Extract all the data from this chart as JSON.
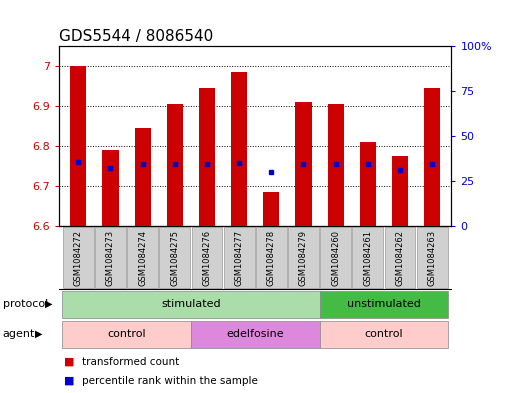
{
  "title": "GDS5544 / 8086540",
  "samples": [
    "GSM1084272",
    "GSM1084273",
    "GSM1084274",
    "GSM1084275",
    "GSM1084276",
    "GSM1084277",
    "GSM1084278",
    "GSM1084279",
    "GSM1084260",
    "GSM1084261",
    "GSM1084262",
    "GSM1084263"
  ],
  "bar_tops": [
    7.0,
    6.79,
    6.845,
    6.905,
    6.945,
    6.985,
    6.685,
    6.91,
    6.905,
    6.81,
    6.775,
    6.945
  ],
  "bar_base": 6.6,
  "percentile_values": [
    6.76,
    6.745,
    6.755,
    6.755,
    6.755,
    6.757,
    6.735,
    6.755,
    6.755,
    6.755,
    6.74,
    6.755
  ],
  "ylim_left": [
    6.6,
    7.05
  ],
  "ylim_right": [
    0,
    100
  ],
  "yticks_left": [
    6.6,
    6.7,
    6.8,
    6.9,
    7.0
  ],
  "ytick_labels_left": [
    "6.6",
    "6.7",
    "6.8",
    "6.9",
    "7"
  ],
  "yticks_right": [
    0,
    25,
    50,
    75,
    100
  ],
  "ytick_labels_right": [
    "0",
    "25",
    "50",
    "75",
    "100%"
  ],
  "bar_color": "#cc0000",
  "percentile_color": "#0000cc",
  "bg_color": "#ffffff",
  "plot_bg_color": "#ffffff",
  "proto_data": [
    {
      "start": 0,
      "end": 8,
      "label": "stimulated",
      "color": "#aaddaa"
    },
    {
      "start": 8,
      "end": 12,
      "label": "unstimulated",
      "color": "#44bb44"
    }
  ],
  "agent_data": [
    {
      "start": 0,
      "end": 4,
      "label": "control",
      "color": "#ffcccc"
    },
    {
      "start": 4,
      "end": 8,
      "label": "edelfosine",
      "color": "#dd88dd"
    },
    {
      "start": 8,
      "end": 12,
      "label": "control",
      "color": "#ffcccc"
    }
  ],
  "legend_items": [
    {
      "label": "transformed count",
      "color": "#cc0000"
    },
    {
      "label": "percentile rank within the sample",
      "color": "#0000cc"
    }
  ],
  "protocol_label": "protocol",
  "agent_label": "agent",
  "bar_width": 0.5,
  "tick_fontsize": 8,
  "title_fontsize": 11
}
